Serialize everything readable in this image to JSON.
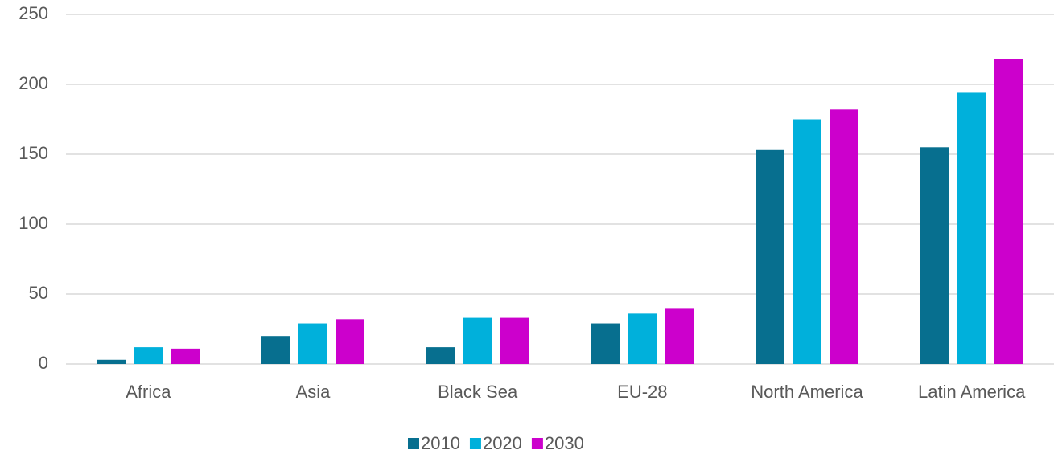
{
  "chart_data": {
    "type": "bar",
    "categories": [
      "Africa",
      "Asia",
      "Black Sea",
      "EU-28",
      "North America",
      "Latin America"
    ],
    "series": [
      {
        "name": "2010",
        "color": "#076f8f",
        "values": [
          3,
          20,
          12,
          29,
          153,
          155
        ]
      },
      {
        "name": "2020",
        "color": "#00b0db",
        "values": [
          12,
          29,
          33,
          36,
          175,
          194
        ]
      },
      {
        "name": "2030",
        "color": "#cc00cc",
        "values": [
          11,
          32,
          33,
          40,
          182,
          218
        ]
      }
    ],
    "ylim": [
      0,
      250
    ],
    "yticks": [
      0,
      50,
      100,
      150,
      200,
      250
    ],
    "grid": true,
    "legend": "bottom"
  }
}
